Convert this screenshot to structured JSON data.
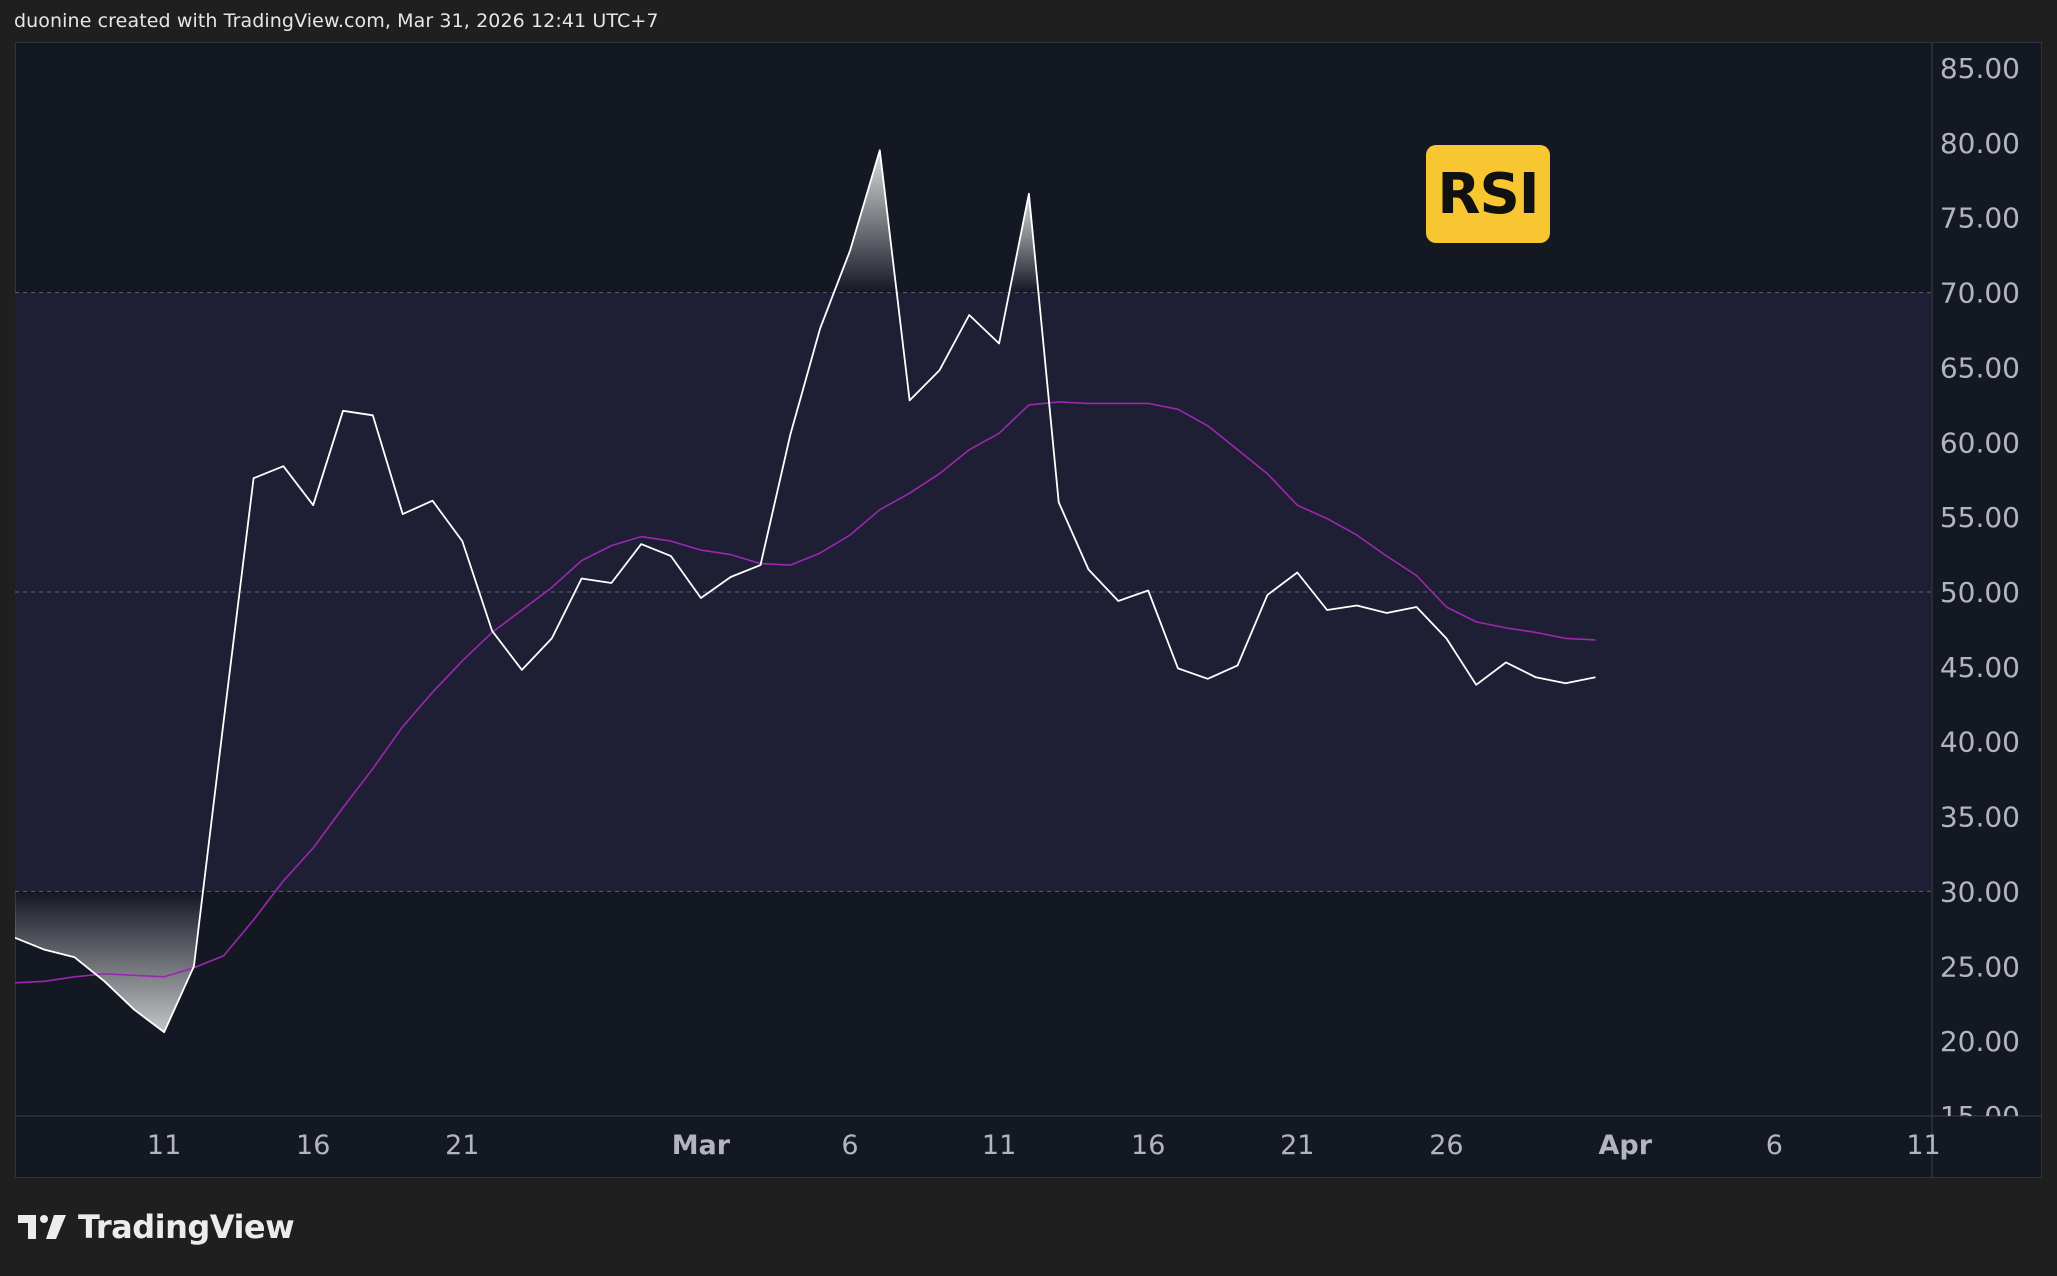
{
  "header": {
    "caption": "duonine created with TradingView.com, Mar 31, 2026 12:41 UTC+7"
  },
  "branding": {
    "name": "TradingView",
    "logo_icon": "tradingview-logo-icon"
  },
  "badge": {
    "label": "RSI",
    "color": "#f7c631"
  },
  "colors": {
    "background": "#141823",
    "band_fill": "#1e1f35",
    "rsi_line": "#ffffff",
    "ma_line": "#9c27b0",
    "axis_text": "#b2b5be",
    "guide_line": "#50536a"
  },
  "chart_data": {
    "type": "line",
    "indicator": "RSI",
    "ylim": [
      15,
      85
    ],
    "y_ticks": [
      "85.00",
      "80.00",
      "75.00",
      "70.00",
      "65.00",
      "60.00",
      "55.00",
      "50.00",
      "45.00",
      "40.00",
      "35.00",
      "30.00",
      "25.00",
      "20.00",
      "15.00"
    ],
    "y_tick_values": [
      85,
      80,
      75,
      70,
      65,
      60,
      55,
      50,
      45,
      40,
      35,
      30,
      25,
      20,
      15
    ],
    "x_ticks": [
      {
        "label": "11",
        "date": "2026-02-11"
      },
      {
        "label": "16",
        "date": "2026-02-16"
      },
      {
        "label": "21",
        "date": "2026-02-21"
      },
      {
        "label": "Mar",
        "date": "2026-03-01"
      },
      {
        "label": "6",
        "date": "2026-03-06"
      },
      {
        "label": "11",
        "date": "2026-03-11"
      },
      {
        "label": "16",
        "date": "2026-03-16"
      },
      {
        "label": "21",
        "date": "2026-03-21"
      },
      {
        "label": "26",
        "date": "2026-03-26"
      },
      {
        "label": "Apr",
        "date": "2026-04-01"
      },
      {
        "label": "6",
        "date": "2026-04-06"
      },
      {
        "label": "11",
        "date": "2026-04-11"
      }
    ],
    "x_range": [
      "2026-02-06",
      "2026-04-11"
    ],
    "bands": {
      "upper": 70,
      "middle": 50,
      "lower": 30
    },
    "series": [
      {
        "role": "rsi",
        "color": "#ffffff",
        "x": [
          "2026-02-06",
          "2026-02-07",
          "2026-02-08",
          "2026-02-09",
          "2026-02-10",
          "2026-02-11",
          "2026-02-12",
          "2026-02-13",
          "2026-02-14",
          "2026-02-15",
          "2026-02-16",
          "2026-02-17",
          "2026-02-18",
          "2026-02-19",
          "2026-02-20",
          "2026-02-21",
          "2026-02-22",
          "2026-02-23",
          "2026-02-24",
          "2026-02-25",
          "2026-02-26",
          "2026-02-27",
          "2026-02-28",
          "2026-03-01",
          "2026-03-02",
          "2026-03-03",
          "2026-03-04",
          "2026-03-05",
          "2026-03-06",
          "2026-03-07",
          "2026-03-08",
          "2026-03-09",
          "2026-03-10",
          "2026-03-11",
          "2026-03-12",
          "2026-03-13",
          "2026-03-14",
          "2026-03-15",
          "2026-03-16",
          "2026-03-17",
          "2026-03-18",
          "2026-03-19",
          "2026-03-20",
          "2026-03-21",
          "2026-03-22",
          "2026-03-23",
          "2026-03-24",
          "2026-03-25",
          "2026-03-26",
          "2026-03-27",
          "2026-03-28",
          "2026-03-29",
          "2026-03-30",
          "2026-03-31"
        ],
        "values": [
          26.9,
          26.1,
          25.6,
          24.0,
          22.1,
          20.6,
          25.0,
          41.4,
          57.6,
          58.4,
          55.8,
          62.1,
          61.8,
          55.2,
          56.1,
          53.4,
          47.4,
          44.8,
          46.9,
          50.9,
          50.6,
          53.2,
          52.4,
          49.6,
          51.0,
          51.8,
          60.5,
          67.6,
          72.8,
          79.5,
          62.8,
          64.8,
          68.5,
          66.6,
          76.6,
          56.0,
          51.5,
          49.4,
          50.1,
          44.9,
          44.2,
          45.1,
          49.8,
          51.3,
          48.8,
          49.1,
          48.6,
          49.0,
          46.9,
          43.8,
          45.3,
          44.3,
          43.9,
          44.3
        ]
      },
      {
        "role": "rsi-moving-average",
        "color": "#9c27b0",
        "x": [
          "2026-02-06",
          "2026-02-07",
          "2026-02-08",
          "2026-02-09",
          "2026-02-10",
          "2026-02-11",
          "2026-02-12",
          "2026-02-13",
          "2026-02-14",
          "2026-02-15",
          "2026-02-16",
          "2026-02-17",
          "2026-02-18",
          "2026-02-19",
          "2026-02-20",
          "2026-02-21",
          "2026-02-22",
          "2026-02-23",
          "2026-02-24",
          "2026-02-25",
          "2026-02-26",
          "2026-02-27",
          "2026-02-28",
          "2026-03-01",
          "2026-03-02",
          "2026-03-03",
          "2026-03-04",
          "2026-03-05",
          "2026-03-06",
          "2026-03-07",
          "2026-03-08",
          "2026-03-09",
          "2026-03-10",
          "2026-03-11",
          "2026-03-12",
          "2026-03-13",
          "2026-03-14",
          "2026-03-15",
          "2026-03-16",
          "2026-03-17",
          "2026-03-18",
          "2026-03-19",
          "2026-03-20",
          "2026-03-21",
          "2026-03-22",
          "2026-03-23",
          "2026-03-24",
          "2026-03-25",
          "2026-03-26",
          "2026-03-27",
          "2026-03-28",
          "2026-03-29",
          "2026-03-30",
          "2026-03-31"
        ],
        "values": [
          23.9,
          24.0,
          24.3,
          24.5,
          24.4,
          24.3,
          24.9,
          25.7,
          28.1,
          30.7,
          32.9,
          35.6,
          38.2,
          41.0,
          43.3,
          45.4,
          47.3,
          48.8,
          50.3,
          52.1,
          53.1,
          53.7,
          53.4,
          52.8,
          52.5,
          51.9,
          51.8,
          52.6,
          53.8,
          55.5,
          56.6,
          57.9,
          59.5,
          60.6,
          62.5,
          62.7,
          62.6,
          62.6,
          62.6,
          62.2,
          61.1,
          59.5,
          57.9,
          55.8,
          54.9,
          53.8,
          52.4,
          51.1,
          49.0,
          48.0,
          47.6,
          47.3,
          46.9,
          46.8
        ]
      }
    ]
  }
}
